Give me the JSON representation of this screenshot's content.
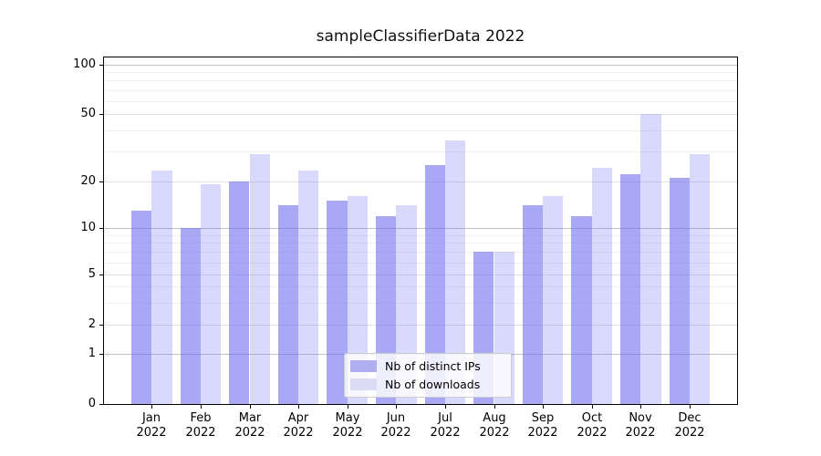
{
  "title": "sampleClassifierData 2022",
  "legend": {
    "position": "lower center",
    "items": [
      {
        "label": "Nb of distinct IPs"
      },
      {
        "label": "Nb of downloads"
      }
    ]
  },
  "chart_data": {
    "type": "bar",
    "title": "sampleClassifierData 2022",
    "categories": [
      "Jan",
      "Feb",
      "Mar",
      "Apr",
      "May",
      "Jun",
      "Jul",
      "Aug",
      "Sep",
      "Oct",
      "Nov",
      "Dec"
    ],
    "category_year": "2022",
    "series": [
      {
        "name": "Nb of distinct IPs",
        "color": "rgba(110,110,238,0.60)",
        "legend_color": "#aeaef0",
        "values": [
          13,
          10,
          20,
          14,
          15,
          12,
          25,
          7,
          14,
          12,
          22,
          21
        ]
      },
      {
        "name": "Nb of downloads",
        "color": "rgba(110,110,238,0.26)",
        "legend_color": "#dcdcf7",
        "values": [
          23,
          19,
          29,
          23,
          16,
          14,
          35,
          7,
          16,
          24,
          50,
          29
        ]
      }
    ],
    "xlabel": "",
    "ylabel": "",
    "y_axis": {
      "scale": "log-like (0,1,2,5,10,20,50,100 labeled)",
      "range": [
        0,
        100
      ],
      "tick_labels": [
        "100",
        "50",
        "20",
        "10",
        "5",
        "2",
        "1",
        "0"
      ],
      "tick_values": [
        100,
        50,
        20,
        10,
        5,
        2,
        1,
        0
      ],
      "decade_values": [
        1,
        10,
        100
      ],
      "mid_values": [
        2,
        5,
        20,
        50
      ],
      "minor_values": [
        3,
        4,
        6,
        7,
        8,
        9,
        30,
        40,
        60,
        70,
        80,
        90
      ]
    },
    "grid": true,
    "colors": {
      "grid_decade": "#c2c2c2",
      "grid_mid": "#e2e2e2",
      "grid_minor": "#f0f0f0",
      "spine": "#000000",
      "text": "#000000"
    }
  }
}
